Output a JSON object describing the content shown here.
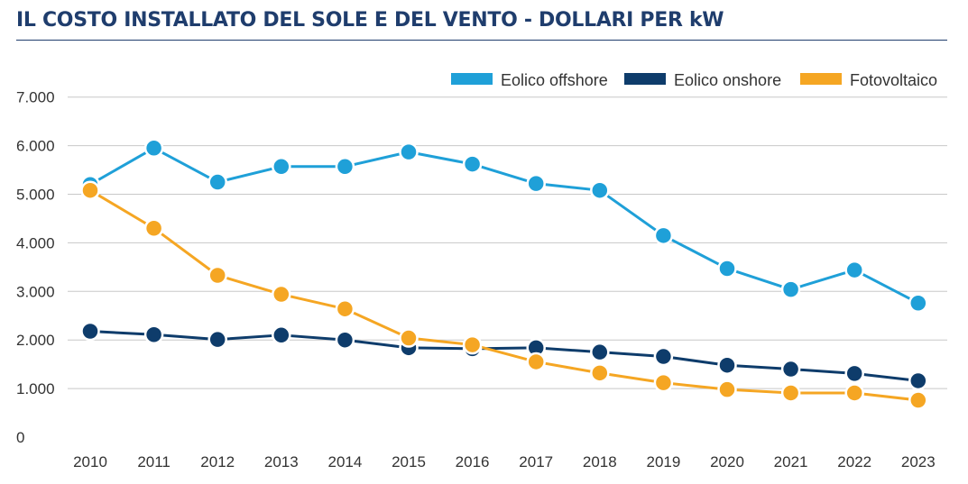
{
  "title": "IL COSTO INSTALLATO DEL SOLE E DEL VENTO - DOLLARI PER kW",
  "chart_data": {
    "type": "line",
    "title": "IL COSTO INSTALLATO DEL SOLE E DEL VENTO - DOLLARI PER kW",
    "xlabel": "",
    "ylabel": "",
    "x": [
      "2010",
      "2011",
      "2012",
      "2013",
      "2014",
      "2015",
      "2016",
      "2017",
      "2018",
      "2019",
      "2020",
      "2021",
      "2022",
      "2023"
    ],
    "ylim": [
      0,
      7000
    ],
    "yticks": [
      0,
      1000,
      2000,
      3000,
      4000,
      5000,
      6000,
      7000
    ],
    "ytick_labels": [
      "0",
      "1.000",
      "2.000",
      "3.000",
      "4.000",
      "5.000",
      "6.000",
      "7.000"
    ],
    "grid": "horizontal",
    "legend_position": "top-right",
    "series": [
      {
        "name": "Eolico offshore",
        "color": "#1fa0d8",
        "values": [
          5200,
          5950,
          5250,
          5570,
          5570,
          5870,
          5620,
          5220,
          5080,
          4150,
          3470,
          3040,
          3440,
          2760
        ]
      },
      {
        "name": "Eolico onshore",
        "color": "#0e3c6b",
        "values": [
          2180,
          2110,
          2010,
          2100,
          2000,
          1840,
          1820,
          1840,
          1750,
          1660,
          1480,
          1400,
          1310,
          1160
        ]
      },
      {
        "name": "Fotovoltaico",
        "color": "#f5a623",
        "values": [
          5080,
          4300,
          3330,
          2940,
          2640,
          2040,
          1900,
          1550,
          1320,
          1120,
          980,
          910,
          910,
          760
        ]
      }
    ]
  }
}
